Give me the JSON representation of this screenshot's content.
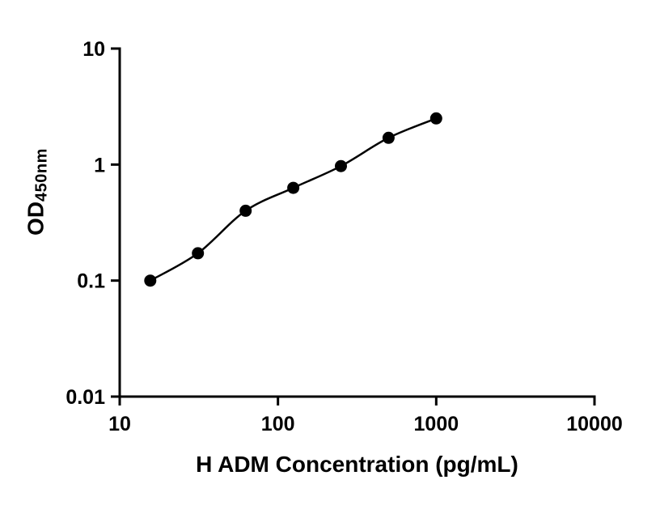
{
  "chart_data": {
    "type": "scatter",
    "title": "",
    "xlabel": "H ADM Concentration (pg/mL)",
    "ylabel": "OD",
    "ylabel_subscript": "450nm",
    "x_scale": "log",
    "y_scale": "log",
    "xlim": [
      10,
      10000
    ],
    "ylim": [
      0.01,
      10
    ],
    "x_ticks": [
      10,
      100,
      1000,
      10000
    ],
    "x_tick_labels": [
      "10",
      "100",
      "1000",
      "10000"
    ],
    "y_ticks": [
      0.01,
      0.1,
      1,
      10
    ],
    "y_tick_labels": [
      "0.01",
      "0.1",
      "1",
      "10"
    ],
    "grid": false,
    "legend": "none",
    "marker_color": "#000000",
    "line_color": "#000000",
    "series": [
      {
        "name": "standard-curve",
        "marker": "circle",
        "color": "#000000",
        "points": [
          {
            "x": 15.6,
            "y": 0.1
          },
          {
            "x": 31.2,
            "y": 0.172
          },
          {
            "x": 62.5,
            "y": 0.4
          },
          {
            "x": 125,
            "y": 0.63
          },
          {
            "x": 250,
            "y": 0.97
          },
          {
            "x": 500,
            "y": 1.7
          },
          {
            "x": 1000,
            "y": 2.5
          }
        ]
      }
    ]
  }
}
